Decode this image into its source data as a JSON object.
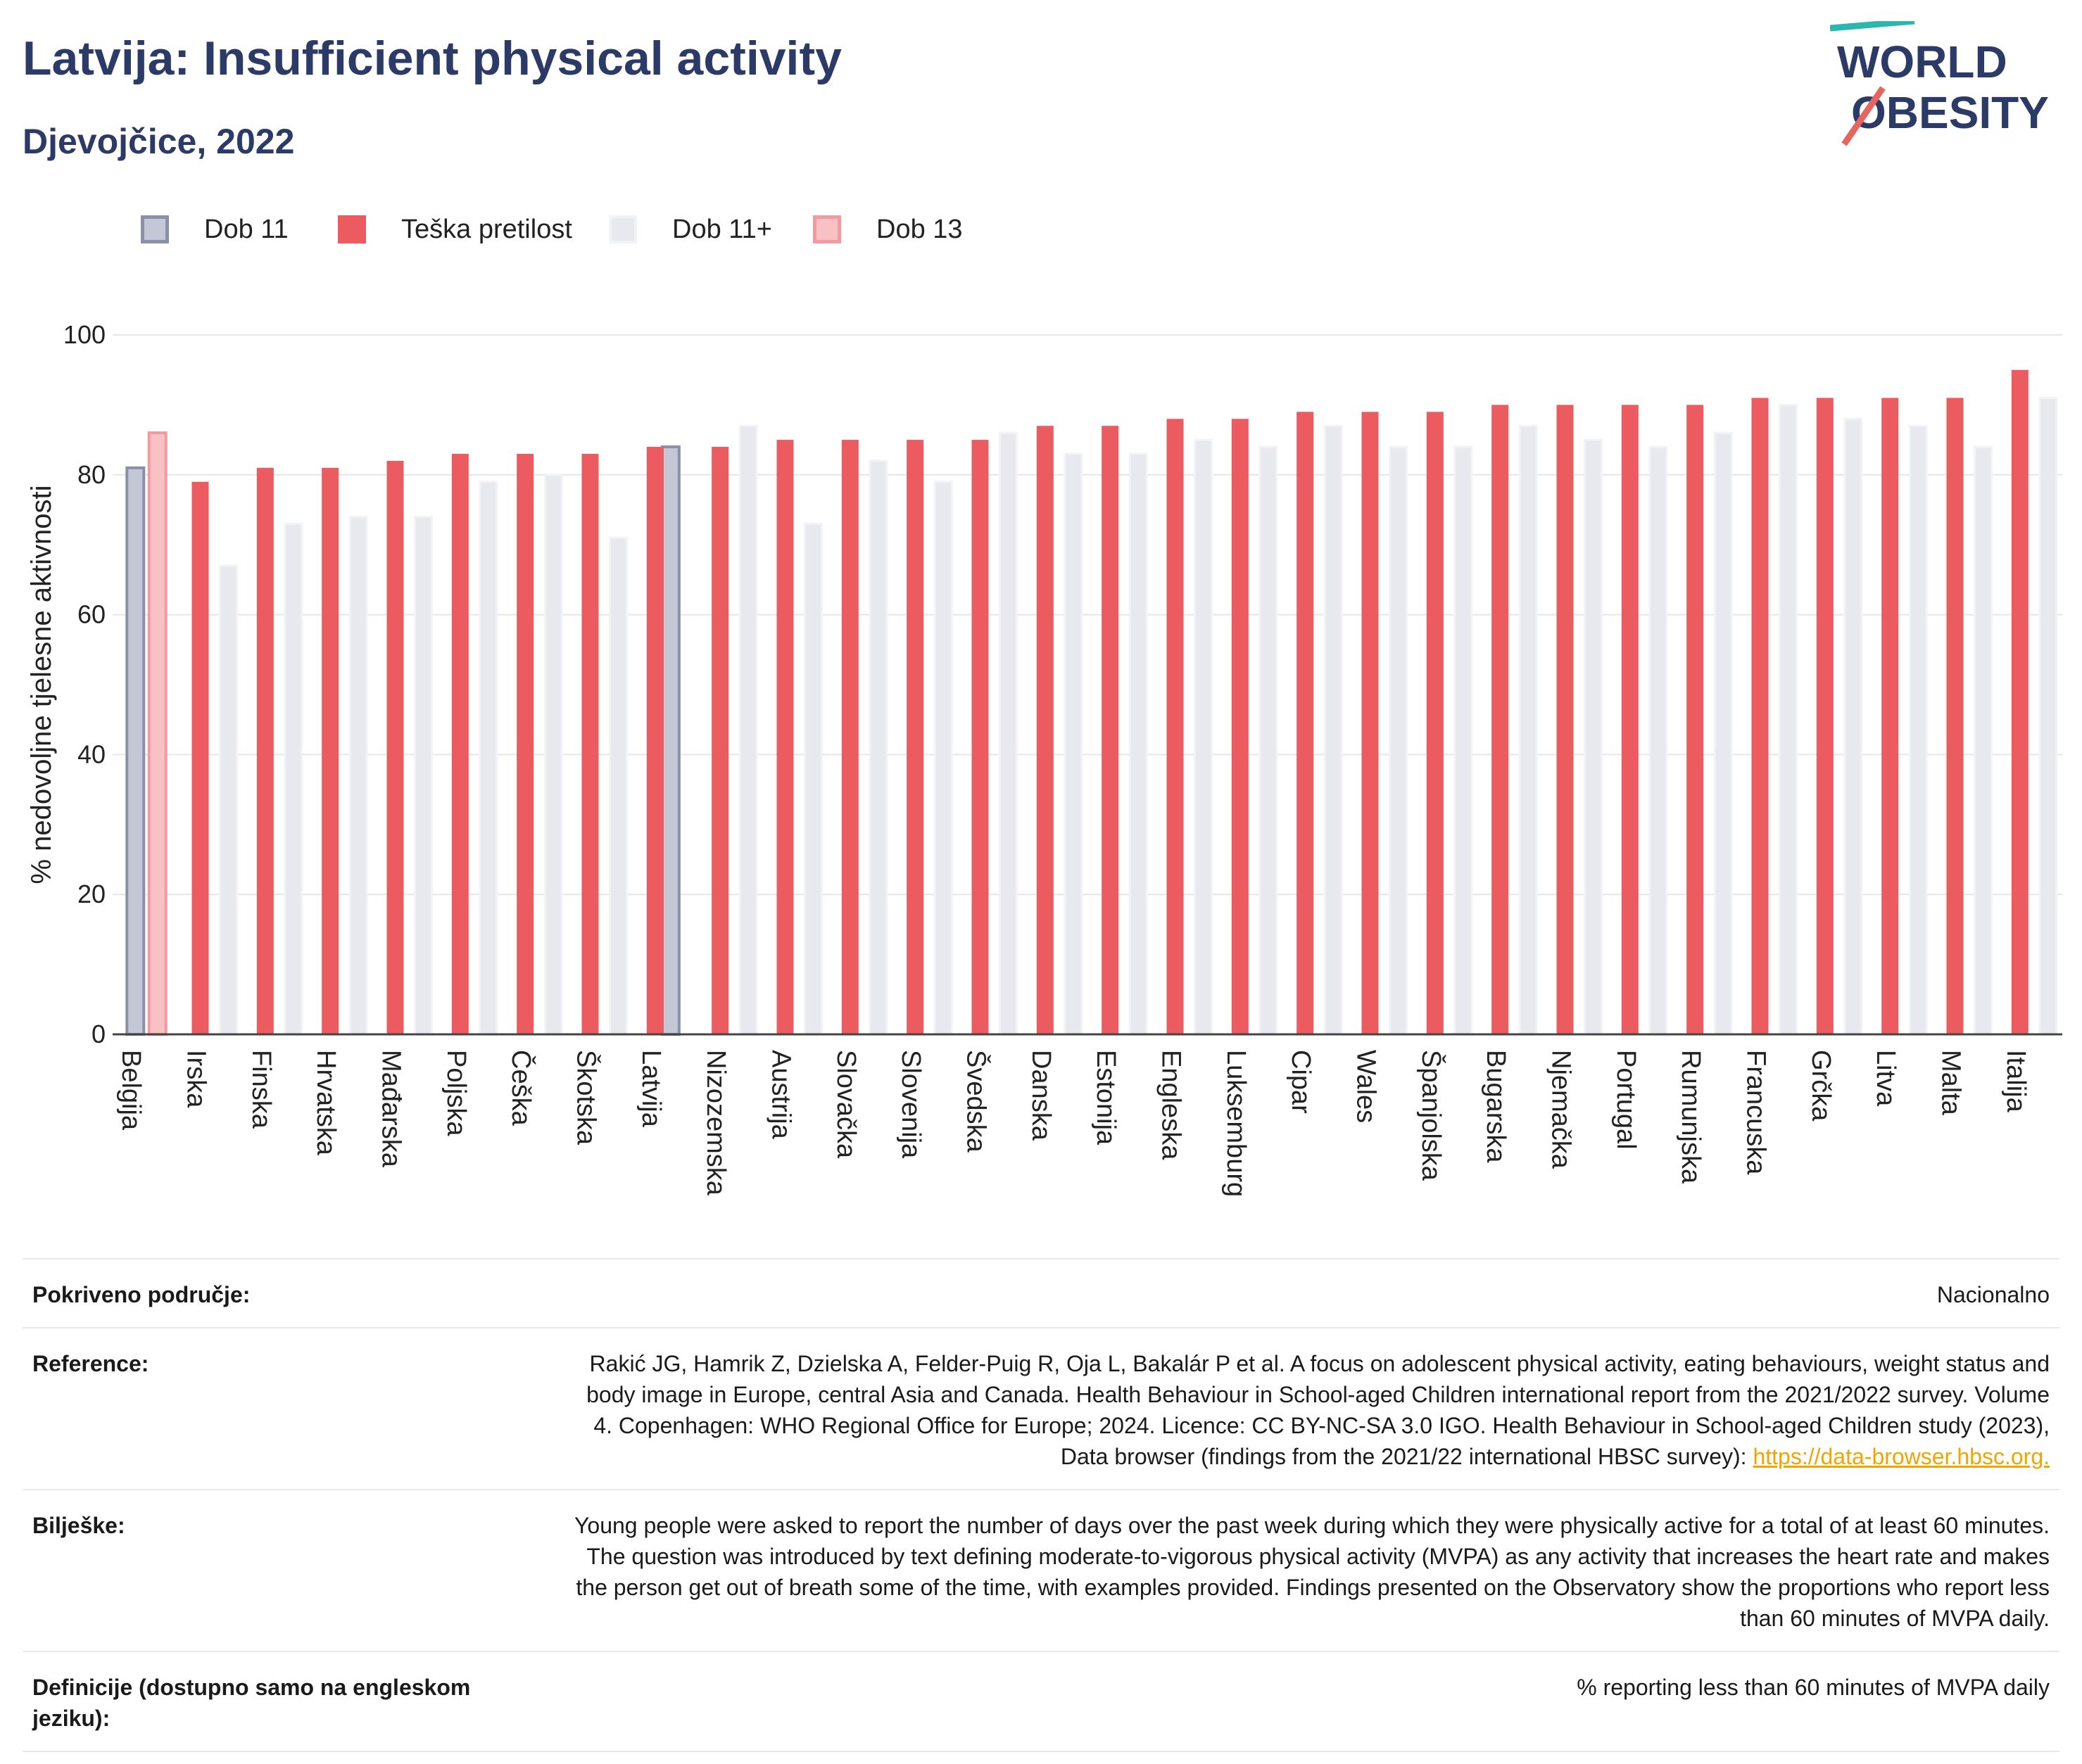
{
  "title": "Latvija: Insufficient physical activity",
  "subtitle": "Djevojčice, 2022",
  "logo": {
    "line1": "WORLD",
    "line2": "OBESITY"
  },
  "colors": {
    "dob11": "#c4c8d6",
    "dob11_border": "#8a90a8",
    "teska": "#eb5b60",
    "dob11plus": "#e8e9ef",
    "dob13": "#f8c2c5",
    "dob13_border": "#f29aa0",
    "title": "#2b3a67",
    "grid": "#e6e6ea",
    "logo_teal": "#2bb6b0",
    "logo_red": "#e8645f",
    "link": "#f0a500"
  },
  "legend": [
    {
      "key": "dob11",
      "label": "Dob 11"
    },
    {
      "key": "teska",
      "label": "Teška pretilost"
    },
    {
      "key": "dob11plus",
      "label": "Dob 11+"
    },
    {
      "key": "dob13",
      "label": "Dob 13"
    }
  ],
  "chart_data": {
    "type": "bar",
    "ylabel": "% nedovoljne tjelesne aktivnosti",
    "xlabel": "",
    "ylim": [
      0,
      100
    ],
    "yticks": [
      0,
      20,
      40,
      60,
      80,
      100
    ],
    "grid": true,
    "legend_position": "top-left",
    "categories": [
      "Belgija",
      "Irska",
      "Finska",
      "Hrvatska",
      "Mađarska",
      "Poljska",
      "Češka",
      "Škotska",
      "Latvija",
      "Nizozemska",
      "Austrija",
      "Slovačka",
      "Slovenija",
      "Švedska",
      "Danska",
      "Estonija",
      "Engleska",
      "Luksemburg",
      "Cipar",
      "Wales",
      "Španjolska",
      "Bugarska",
      "Njemačka",
      "Portugal",
      "Rumunjska",
      "Francuska",
      "Grčka",
      "Litva",
      "Malta",
      "Italija"
    ],
    "series": [
      {
        "name": "Dob 11",
        "key": "dob11",
        "values": [
          81,
          null,
          null,
          null,
          null,
          null,
          null,
          null,
          84,
          null,
          null,
          null,
          null,
          null,
          null,
          null,
          null,
          null,
          null,
          null,
          null,
          null,
          null,
          null,
          null,
          null,
          null,
          null,
          null,
          null
        ]
      },
      {
        "name": "Teška pretilost",
        "key": "teska",
        "values": [
          null,
          79,
          81,
          81,
          82,
          83,
          83,
          83,
          84,
          84,
          85,
          85,
          85,
          85,
          87,
          87,
          88,
          88,
          89,
          89,
          89,
          90,
          90,
          90,
          90,
          91,
          91,
          91,
          91,
          95
        ]
      },
      {
        "name": "Dob 11+",
        "key": "dob11plus",
        "values": [
          null,
          67,
          73,
          74,
          74,
          79,
          80,
          71,
          null,
          87,
          73,
          82,
          79,
          86,
          83,
          83,
          85,
          84,
          87,
          84,
          84,
          87,
          85,
          84,
          86,
          90,
          88,
          87,
          84,
          91
        ]
      },
      {
        "name": "Dob 13",
        "key": "dob13",
        "values": [
          86,
          null,
          null,
          null,
          null,
          null,
          null,
          null,
          null,
          null,
          null,
          null,
          null,
          null,
          null,
          null,
          null,
          null,
          null,
          null,
          null,
          null,
          null,
          null,
          null,
          null,
          null,
          null,
          null,
          null
        ]
      }
    ]
  },
  "info": [
    {
      "label": "Pokriveno područje:",
      "value": "Nacionalno",
      "link": ""
    },
    {
      "label": "Reference:",
      "value": "Rakić JG, Hamrik Z, Dzielska A, Felder-Puig R, Oja L, Bakalár P et al. A focus on adolescent physical activity, eating behaviours, weight status and body image in Europe, central Asia and Canada. Health Behaviour in School-aged Children international report from the 2021/2022 survey. Volume 4. Copenhagen: WHO Regional Office for Europe; 2024. Licence: CC BY-NC-SA 3.0 IGO. Health Behaviour in School-aged Children study (2023), Data browser (findings from the 2021/22 international HBSC survey): ",
      "link": "https://data-browser.hbsc.org."
    },
    {
      "label": "Bilješke:",
      "value": "Young people were asked to report the number of days over the past week during which they were physically active for a total of at least 60 minutes. The question was introduced by text defining moderate-to-vigorous physical activity (MVPA) as any activity that increases the heart rate and makes the person get out of breath some of the time, with examples provided. Findings presented on the Observatory show the proportions who report less than 60 minutes of MVPA daily.",
      "link": ""
    },
    {
      "label": "Definicije (dostupno samo na engleskom jeziku):",
      "value": "% reporting less than 60 minutes of MVPA daily",
      "link": ""
    }
  ]
}
